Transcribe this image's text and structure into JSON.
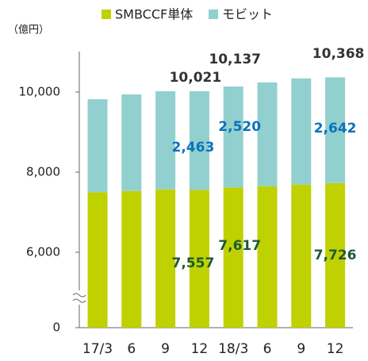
{
  "chart_data": {
    "type": "stacked_bar",
    "y_label": "（億円）",
    "categories": [
      "17/3",
      "6",
      "9",
      "12",
      "18/3",
      "6",
      "9",
      "12"
    ],
    "series": [
      {
        "name": "SMBCCF単体",
        "color": "#bfd100",
        "values": [
          7500,
          7530,
          7570,
          7557,
          7617,
          7650,
          7690,
          7726
        ],
        "value_labels": [
          null,
          null,
          null,
          "7,557",
          "7,617",
          null,
          null,
          "7,726"
        ],
        "label_color": "#1e5a32"
      },
      {
        "name": "モビット",
        "color": "#92d0cf",
        "values": [
          2320,
          2410,
          2450,
          2463,
          2520,
          2590,
          2650,
          2642
        ],
        "value_labels": [
          null,
          null,
          null,
          "2,463",
          "2,520",
          null,
          null,
          "2,642"
        ],
        "label_color": "#0b72bd"
      }
    ],
    "annotations": [
      {
        "index": 3,
        "value": 10021,
        "label": "10,021"
      },
      {
        "index": 4,
        "value": 10137,
        "label": "10,137"
      },
      {
        "index": 7,
        "value": 10368,
        "label": "10,368"
      }
    ],
    "ylim": [
      0,
      11000
    ],
    "axis_break": [
      0,
      6000
    ],
    "yticks": [
      0,
      {
        "value": 6000,
        "label": "6,000"
      },
      {
        "value": 8000,
        "label": "8,000"
      },
      {
        "value": 10000,
        "label": "10,000"
      }
    ],
    "legend": "top"
  }
}
